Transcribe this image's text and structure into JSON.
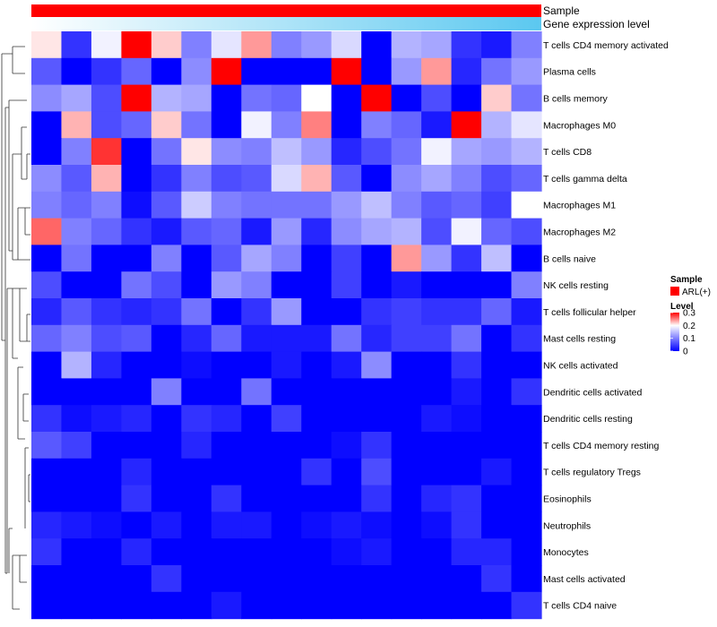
{
  "chart_data": {
    "type": "heatmap",
    "annotations": {
      "sample_label": "Sample",
      "expression_label": "Gene expression level",
      "sample_color": "#ff0000",
      "expression_colors": [
        "#ffffff",
        "#5bc8f0"
      ]
    },
    "rows": [
      "T cells CD4 memory activated",
      "Plasma cells",
      "B cells memory",
      "Macrophages M0",
      "T cells CD8",
      "T cells gamma delta",
      "Macrophages M1",
      "Macrophages M2",
      "B cells naive",
      "NK cells resting",
      "T cells follicular helper",
      "Mast cells resting",
      "NK cells activated",
      "Dendritic cells activated",
      "Dendritic cells resting",
      "T cells CD4 memory resting",
      "T cells regulatory  Tregs",
      "Eosinophils",
      "Neutrophils",
      "Monocytes",
      "Mast cells activated",
      "T cells CD4 naive"
    ],
    "values": [
      [
        0.21,
        0.04,
        0.19,
        0.3,
        0.22,
        0.1,
        0.18,
        0.24,
        0.1,
        0.12,
        0.17,
        0.0,
        0.14,
        0.13,
        0.04,
        0.02,
        0.1
      ],
      [
        0.07,
        0.0,
        0.04,
        0.08,
        0.0,
        0.11,
        0.3,
        0.0,
        0.0,
        0.0,
        0.3,
        0.0,
        0.12,
        0.24,
        0.03,
        0.09,
        0.12
      ],
      [
        0.11,
        0.13,
        0.06,
        0.3,
        0.14,
        0.13,
        0.0,
        0.09,
        0.08,
        0.2,
        0.0,
        0.3,
        0.0,
        0.06,
        0.0,
        0.22,
        0.09
      ],
      [
        0.0,
        0.23,
        0.06,
        0.08,
        0.22,
        0.09,
        0.0,
        0.19,
        0.1,
        0.25,
        0.0,
        0.1,
        0.08,
        0.02,
        0.3,
        0.14,
        0.18
      ],
      [
        0.0,
        0.1,
        0.28,
        0.0,
        0.09,
        0.21,
        0.11,
        0.1,
        0.15,
        0.12,
        0.03,
        0.06,
        0.09,
        0.19,
        0.13,
        0.12,
        0.14
      ],
      [
        0.11,
        0.07,
        0.23,
        0.0,
        0.04,
        0.1,
        0.06,
        0.07,
        0.17,
        0.23,
        0.07,
        0.0,
        0.11,
        0.13,
        0.1,
        0.06,
        0.08
      ],
      [
        0.1,
        0.08,
        0.1,
        0.01,
        0.07,
        0.16,
        0.1,
        0.09,
        0.09,
        0.09,
        0.12,
        0.15,
        0.1,
        0.07,
        0.08,
        0.05,
        0.2
      ],
      [
        0.26,
        0.1,
        0.08,
        0.04,
        0.02,
        0.07,
        0.08,
        0.02,
        0.12,
        0.03,
        0.11,
        0.13,
        0.14,
        0.06,
        0.19,
        0.08,
        0.06
      ],
      [
        0.0,
        0.09,
        0.0,
        0.0,
        0.1,
        0.0,
        0.07,
        0.13,
        0.1,
        0.0,
        0.05,
        0.0,
        0.24,
        0.12,
        0.04,
        0.15,
        0.0
      ],
      [
        0.06,
        0.0,
        0.0,
        0.09,
        0.06,
        0.0,
        0.12,
        0.1,
        0.0,
        0.0,
        0.05,
        0.0,
        0.02,
        0.0,
        0.0,
        0.0,
        0.1
      ],
      [
        0.03,
        0.07,
        0.04,
        0.03,
        0.04,
        0.09,
        0.0,
        0.04,
        0.12,
        0.0,
        0.0,
        0.04,
        0.05,
        0.04,
        0.04,
        0.08,
        0.02
      ],
      [
        0.08,
        0.1,
        0.06,
        0.07,
        0.0,
        0.03,
        0.08,
        0.02,
        0.02,
        0.02,
        0.09,
        0.03,
        0.05,
        0.05,
        0.09,
        0.0,
        0.04
      ],
      [
        0.0,
        0.14,
        0.03,
        0.0,
        0.0,
        0.01,
        0.0,
        0.0,
        0.02,
        0.0,
        0.02,
        0.11,
        0.0,
        0.0,
        0.04,
        0.0,
        0.0
      ],
      [
        0.0,
        0.0,
        0.0,
        0.0,
        0.1,
        0.0,
        0.0,
        0.09,
        0.0,
        0.0,
        0.0,
        0.0,
        0.0,
        0.0,
        0.02,
        0.0,
        0.04
      ],
      [
        0.04,
        0.01,
        0.02,
        0.03,
        0.0,
        0.04,
        0.03,
        0.0,
        0.05,
        0.0,
        0.0,
        0.0,
        0.0,
        0.02,
        0.01,
        0.0,
        0.0
      ],
      [
        0.07,
        0.05,
        0.0,
        0.0,
        0.0,
        0.03,
        0.0,
        0.0,
        0.0,
        0.0,
        0.01,
        0.04,
        0.0,
        0.0,
        0.0,
        0.0,
        0.0
      ],
      [
        0.0,
        0.0,
        0.0,
        0.03,
        0.0,
        0.0,
        0.0,
        0.0,
        0.0,
        0.04,
        0.0,
        0.06,
        0.0,
        0.0,
        0.0,
        0.02,
        0.0
      ],
      [
        0.0,
        0.0,
        0.0,
        0.04,
        0.0,
        0.0,
        0.04,
        0.0,
        0.0,
        0.0,
        0.0,
        0.04,
        0.0,
        0.03,
        0.04,
        0.0,
        0.0
      ],
      [
        0.03,
        0.02,
        0.01,
        0.0,
        0.02,
        0.0,
        0.02,
        0.02,
        0.0,
        0.01,
        0.02,
        0.01,
        0.0,
        0.01,
        0.04,
        0.0,
        0.0
      ],
      [
        0.04,
        0.0,
        0.0,
        0.03,
        0.0,
        0.0,
        0.0,
        0.0,
        0.0,
        0.0,
        0.01,
        0.02,
        0.0,
        0.0,
        0.03,
        0.03,
        0.0
      ],
      [
        0.0,
        0.0,
        0.0,
        0.0,
        0.04,
        0.0,
        0.0,
        0.0,
        0.0,
        0.0,
        0.0,
        0.0,
        0.0,
        0.0,
        0.0,
        0.04,
        0.0
      ],
      [
        0.0,
        0.0,
        0.0,
        0.0,
        0.0,
        0.0,
        0.02,
        0.0,
        0.0,
        0.0,
        0.0,
        0.0,
        0.0,
        0.0,
        0.0,
        0.0,
        0.04
      ]
    ],
    "color_scale": {
      "low": "#0000ff",
      "mid": "#ffffff",
      "high": "#ff0000",
      "min": 0,
      "max": 0.3,
      "mid_value": 0.2
    },
    "legend": {
      "sample_title": "Sample",
      "sample_entry": "ARL(+)",
      "level_title": "Level",
      "ticks": [
        "0.3",
        "0.2",
        "0.1",
        "0"
      ],
      "tick_values": [
        0.3,
        0.2,
        0.1,
        0
      ],
      "placement": "right"
    }
  }
}
